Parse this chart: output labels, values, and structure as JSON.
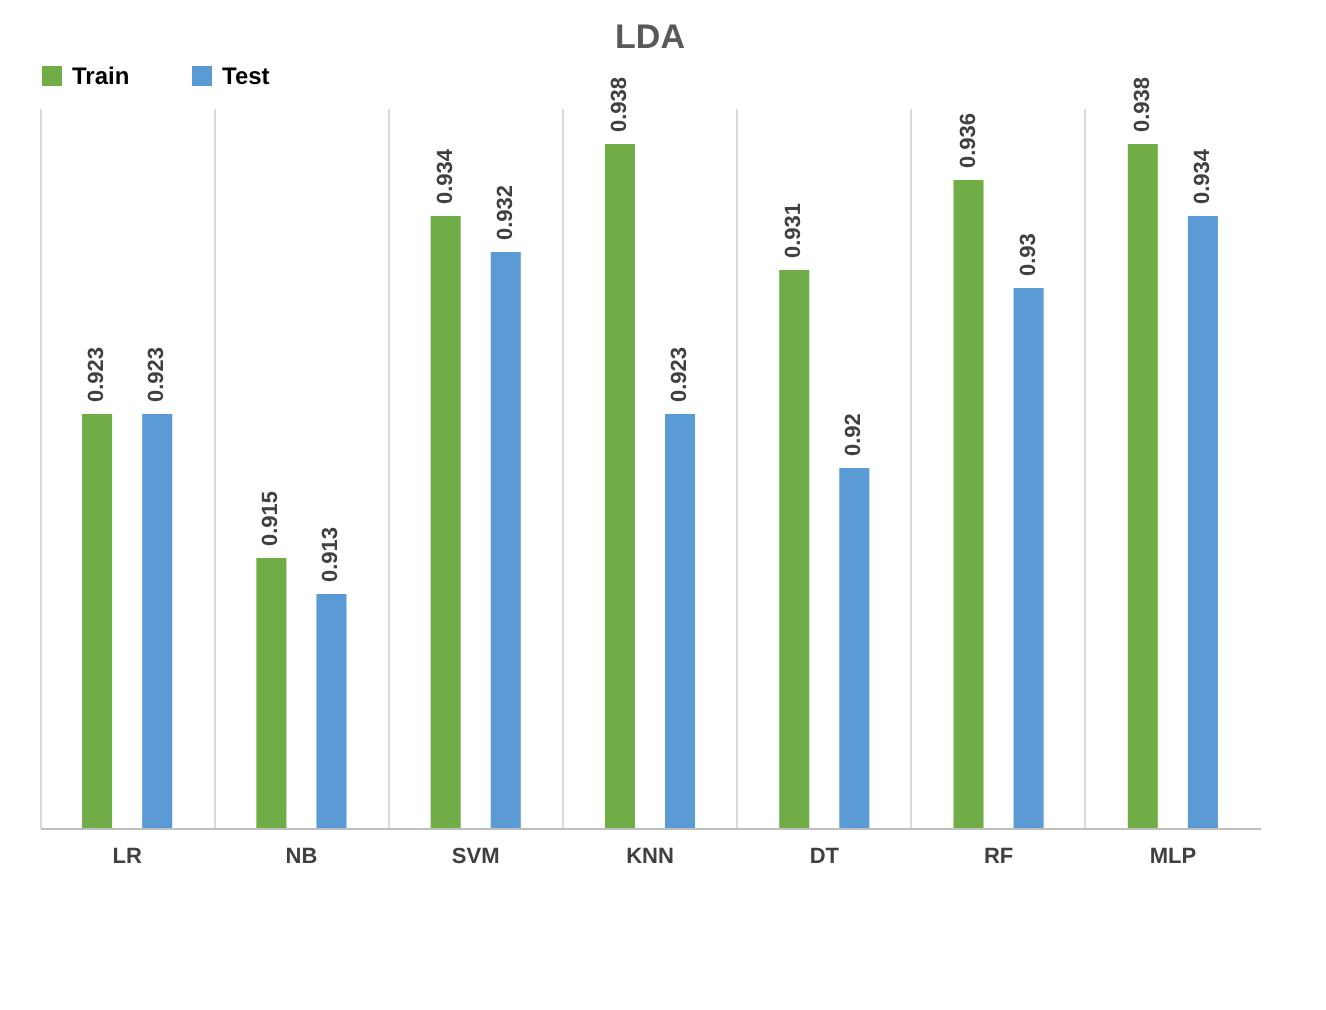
{
  "chart_data": {
    "type": "bar",
    "title": "LDA",
    "categories": [
      "LR",
      "NB",
      "SVM",
      "KNN",
      "DT",
      "RF",
      "MLP"
    ],
    "series": [
      {
        "name": "Train",
        "color": "#70ad47",
        "values": [
          0.923,
          0.915,
          0.934,
          0.938,
          0.931,
          0.936,
          0.938
        ]
      },
      {
        "name": "Test",
        "color": "#5b9bd5",
        "values": [
          0.923,
          0.913,
          0.932,
          0.923,
          0.92,
          0.93,
          0.934
        ]
      }
    ],
    "ylim": [
      0.9,
      0.94
    ],
    "tick_labels": "x",
    "grid": "x",
    "legend": "top left",
    "data_labels": true
  }
}
